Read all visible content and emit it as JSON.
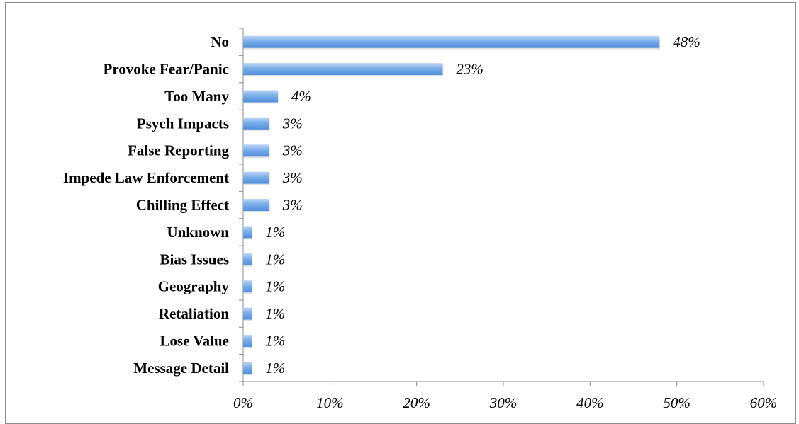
{
  "chart_data": {
    "type": "bar",
    "orientation": "horizontal",
    "categories": [
      "No",
      "Provoke Fear/Panic",
      "Too Many",
      "Psych Impacts",
      "False Reporting",
      "Impede Law Enforcement",
      "Chilling Effect",
      "Unknown",
      "Bias Issues",
      "Geography",
      "Retaliation",
      "Lose Value",
      "Message Detail"
    ],
    "values": [
      48,
      23,
      4,
      3,
      3,
      3,
      3,
      1,
      1,
      1,
      1,
      1,
      1
    ],
    "value_labels": [
      "48%",
      "23%",
      "4%",
      "3%",
      "3%",
      "3%",
      "3%",
      "1%",
      "1%",
      "1%",
      "1%",
      "1%",
      "1%"
    ],
    "xlim": [
      0,
      60
    ],
    "x_ticks": [
      0,
      10,
      20,
      30,
      40,
      50,
      60
    ],
    "x_tick_labels": [
      "0%",
      "10%",
      "20%",
      "30%",
      "40%",
      "50%",
      "60%"
    ],
    "grid": false,
    "legend": "none",
    "colors": {
      "bar_top": "#bcd6f5",
      "bar_mid": "#7aaee8",
      "bar_bottom": "#4f8fdc",
      "axis": "#8c8c8c"
    }
  }
}
